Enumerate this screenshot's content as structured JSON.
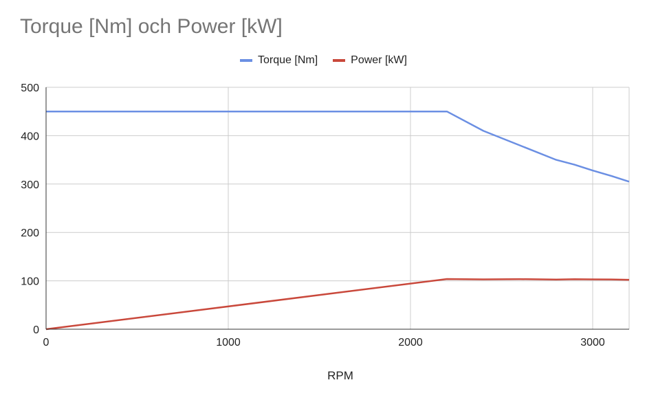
{
  "chart_data": {
    "type": "line",
    "title": "Torque [Nm] och Power [kW]",
    "xlabel": "RPM",
    "ylabel": "",
    "xlim": [
      0,
      3200
    ],
    "ylim": [
      0,
      500
    ],
    "xticks": [
      0,
      1000,
      2000,
      3000
    ],
    "yticks": [
      0,
      100,
      200,
      300,
      400,
      500
    ],
    "grid": true,
    "legend_position": "top",
    "series": [
      {
        "name": "Torque [Nm]",
        "color": "#6b8fe3",
        "x": [
          0,
          2200,
          2400,
          2600,
          2800,
          2900,
          3000,
          3100,
          3200
        ],
        "y": [
          450,
          450,
          410,
          380,
          350,
          340,
          328,
          317,
          305
        ]
      },
      {
        "name": "Power [kW]",
        "color": "#c9483b",
        "x": [
          0,
          2200,
          2400,
          2600,
          2800,
          2900,
          3000,
          3100,
          3200
        ],
        "y": [
          0,
          103.7,
          103.0,
          103.5,
          102.6,
          103.3,
          103.0,
          102.9,
          102.2
        ]
      }
    ]
  }
}
